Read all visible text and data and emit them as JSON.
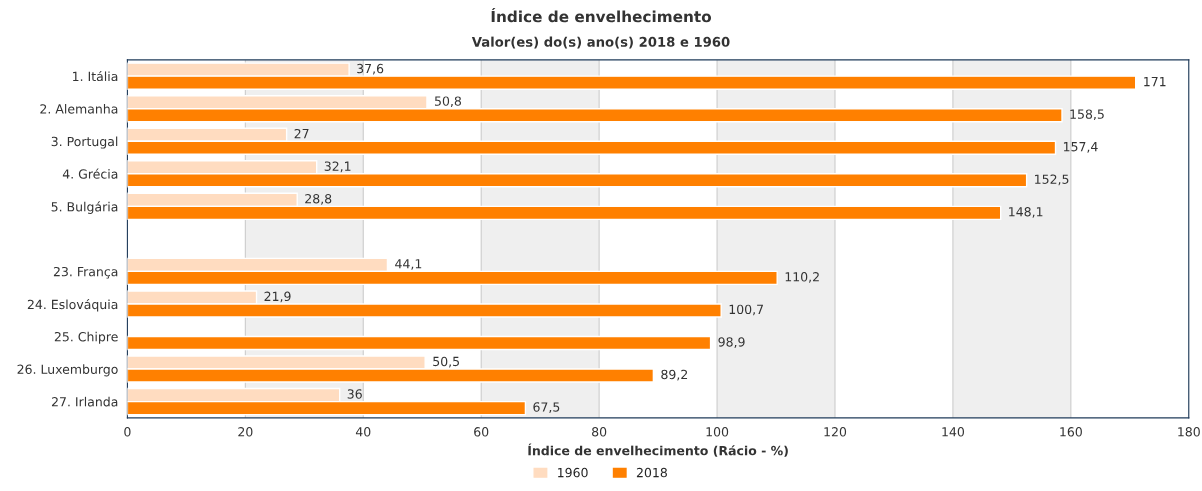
{
  "chart_data": {
    "type": "bar",
    "orientation": "horizontal",
    "title": "Índice de envelhecimento",
    "subtitle": "Valor(es) do(s) ano(s) 2018 e 1960",
    "xlabel": "Índice de envelhecimento (Rácio - %)",
    "categories": [
      "1. Itália",
      "2. Alemanha",
      "3. Portugal",
      "4. Grécia",
      "5. Bulgária",
      null,
      "23. França",
      "24. Eslováquia",
      "25. Chipre",
      "26. Luxemburgo",
      "27. Irlanda"
    ],
    "series": [
      {
        "name": "1960",
        "color": "#ffdcc0",
        "values": [
          37.6,
          50.8,
          27,
          32.1,
          28.8,
          null,
          44.1,
          21.9,
          null,
          50.5,
          36
        ],
        "value_labels": [
          "37,6",
          "50,8",
          "27",
          "32,1",
          "28,8",
          null,
          "44,1",
          "21,9",
          null,
          "50,5",
          "36"
        ]
      },
      {
        "name": "2018",
        "color": "#ff8000",
        "values": [
          171,
          158.5,
          157.4,
          152.5,
          148.1,
          null,
          110.2,
          100.7,
          98.9,
          89.2,
          67.5
        ],
        "value_labels": [
          "171",
          "158,5",
          "157,4",
          "152,5",
          "148,1",
          null,
          "110,2",
          "100,7",
          "98,9",
          "89,2",
          "67,5"
        ]
      }
    ],
    "xlim": [
      0,
      180
    ],
    "xticks": [
      0,
      20,
      40,
      60,
      80,
      100,
      120,
      140,
      160,
      180
    ],
    "bands": [
      {
        "axis": "x",
        "from": 20,
        "to": 40,
        "color": "#efefef"
      },
      {
        "axis": "x",
        "from": 60,
        "to": 80,
        "color": "#efefef"
      },
      {
        "axis": "x",
        "from": 100,
        "to": 120,
        "color": "#efefef"
      },
      {
        "axis": "x",
        "from": 140,
        "to": 160,
        "color": "#efefef"
      }
    ],
    "grid": "x",
    "legend": "bottom"
  }
}
